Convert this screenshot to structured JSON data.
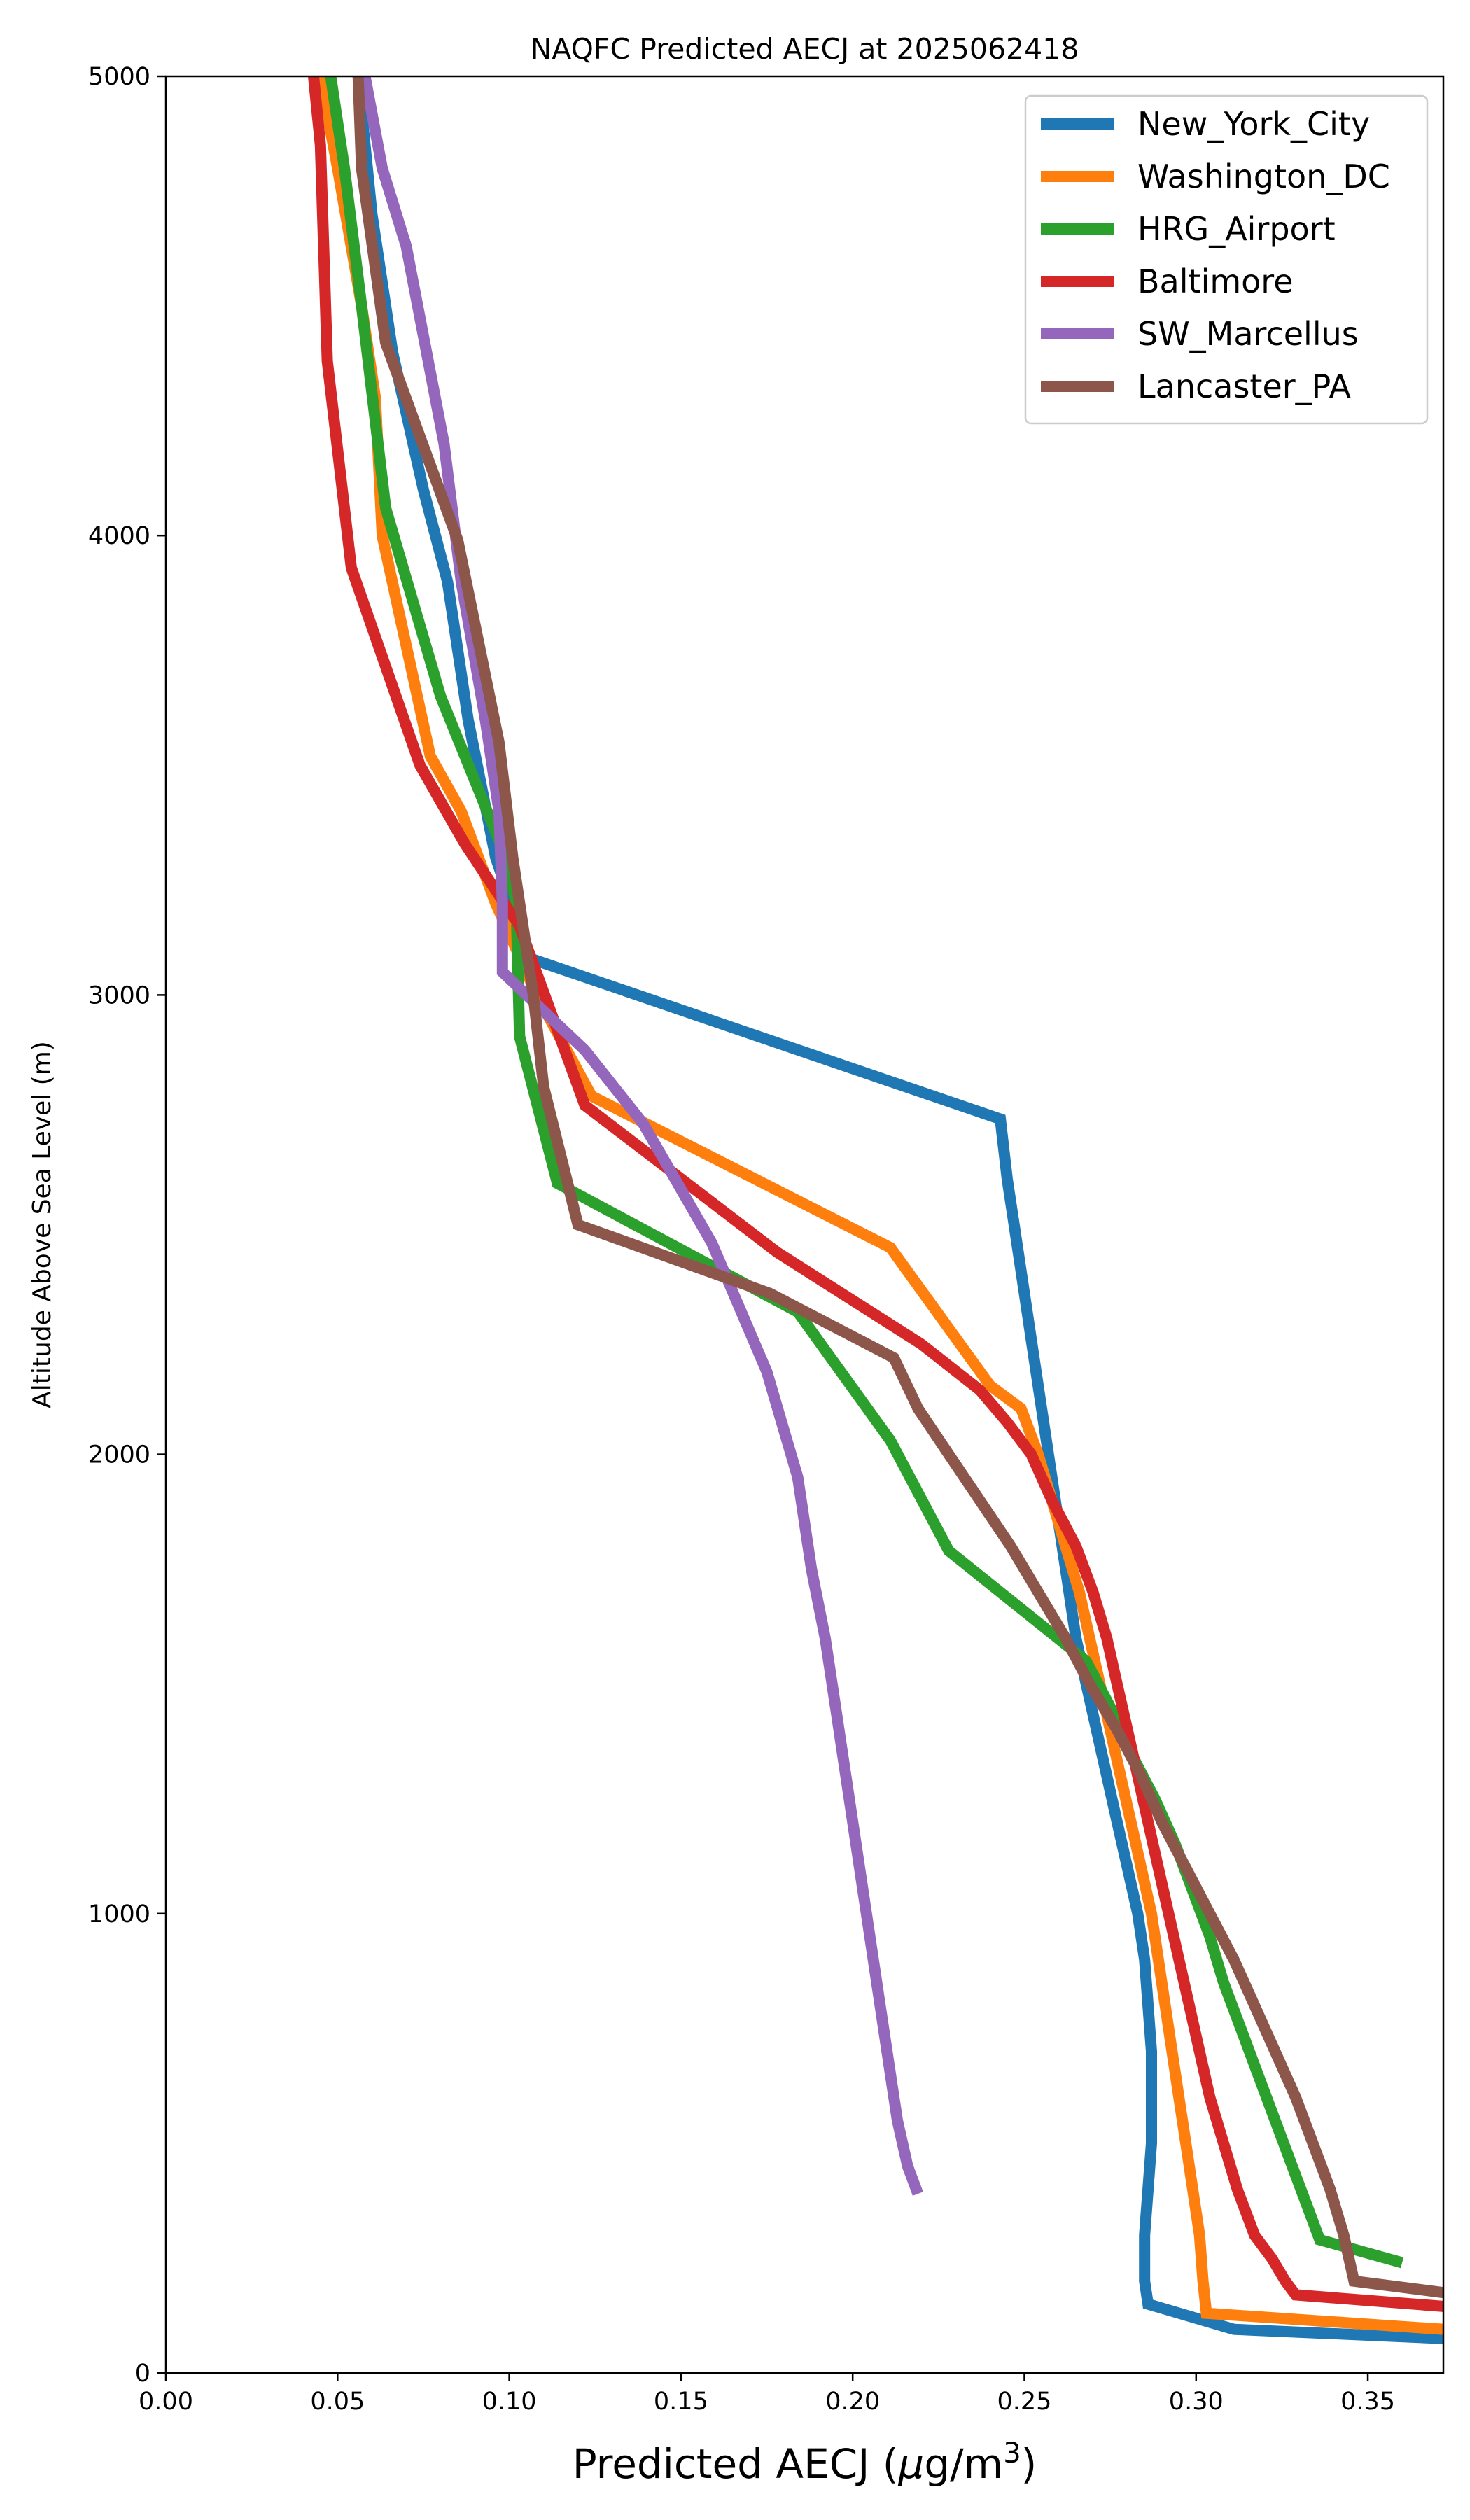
{
  "chart_data": {
    "type": "line",
    "title": "NAQFC Predicted AECJ at 2025062418",
    "xlabel_prefix": "Predicted AECJ (",
    "xlabel_mu": "μ",
    "xlabel_unit": "g/m",
    "xlabel_sup": "3",
    "xlabel_suffix": ")",
    "ylabel": "Altitude Above Sea Level (m)",
    "xlim": [
      0.0,
      0.372
    ],
    "ylim": [
      0,
      5000
    ],
    "xticks": [
      "0.00",
      "0.05",
      "0.10",
      "0.15",
      "0.20",
      "0.25",
      "0.30",
      "0.35"
    ],
    "xtick_values": [
      0.0,
      0.05,
      0.1,
      0.15,
      0.2,
      0.25,
      0.3,
      0.35
    ],
    "yticks": [
      "0",
      "1000",
      "2000",
      "3000",
      "4000",
      "5000"
    ],
    "ytick_values": [
      0,
      1000,
      2000,
      3000,
      4000,
      5000
    ],
    "grid": false,
    "legend_position": "top-right",
    "series": [
      {
        "name": "New_York_City",
        "color": "#1f77b4",
        "points": [
          [
            0.372,
            75
          ],
          [
            0.311,
            95
          ],
          [
            0.286,
            150
          ],
          [
            0.285,
            200
          ],
          [
            0.285,
            300
          ],
          [
            0.286,
            400
          ],
          [
            0.287,
            500
          ],
          [
            0.287,
            600
          ],
          [
            0.287,
            700
          ],
          [
            0.286,
            800
          ],
          [
            0.285,
            900
          ],
          [
            0.283,
            1000
          ],
          [
            0.28,
            1100
          ],
          [
            0.277,
            1200
          ],
          [
            0.274,
            1300
          ],
          [
            0.271,
            1400
          ],
          [
            0.268,
            1500
          ],
          [
            0.265,
            1600
          ],
          [
            0.263,
            1700
          ],
          [
            0.261,
            1800
          ],
          [
            0.259,
            1900
          ],
          [
            0.257,
            2000
          ],
          [
            0.255,
            2100
          ],
          [
            0.253,
            2200
          ],
          [
            0.251,
            2300
          ],
          [
            0.249,
            2400
          ],
          [
            0.247,
            2500
          ],
          [
            0.245,
            2600
          ],
          [
            0.243,
            2730
          ],
          [
            0.106,
            3080
          ],
          [
            0.096,
            3300
          ],
          [
            0.088,
            3600
          ],
          [
            0.082,
            3900
          ],
          [
            0.075,
            4100
          ],
          [
            0.066,
            4400
          ],
          [
            0.06,
            4700
          ],
          [
            0.056,
            5000
          ]
        ]
      },
      {
        "name": "Washington_DC",
        "color": "#ff7f0e",
        "points": [
          [
            0.372,
            95
          ],
          [
            0.303,
            130
          ],
          [
            0.302,
            200
          ],
          [
            0.301,
            300
          ],
          [
            0.299,
            400
          ],
          [
            0.297,
            500
          ],
          [
            0.295,
            600
          ],
          [
            0.293,
            700
          ],
          [
            0.291,
            800
          ],
          [
            0.289,
            900
          ],
          [
            0.287,
            1000
          ],
          [
            0.284,
            1100
          ],
          [
            0.281,
            1200
          ],
          [
            0.278,
            1300
          ],
          [
            0.275,
            1400
          ],
          [
            0.272,
            1500
          ],
          [
            0.269,
            1600
          ],
          [
            0.266,
            1700
          ],
          [
            0.262,
            1800
          ],
          [
            0.258,
            1900
          ],
          [
            0.254,
            2000
          ],
          [
            0.249,
            2100
          ],
          [
            0.24,
            2150
          ],
          [
            0.211,
            2450
          ],
          [
            0.124,
            2780
          ],
          [
            0.108,
            3000
          ],
          [
            0.096,
            3200
          ],
          [
            0.086,
            3400
          ],
          [
            0.077,
            3520
          ],
          [
            0.063,
            4000
          ],
          [
            0.061,
            4300
          ],
          [
            0.057,
            4500
          ],
          [
            0.05,
            4800
          ],
          [
            0.045,
            5000
          ]
        ]
      },
      {
        "name": "HRG_Airport",
        "color": "#2ca02c",
        "points": [
          [
            0.36,
            240
          ],
          [
            0.336,
            290
          ],
          [
            0.333,
            350
          ],
          [
            0.328,
            450
          ],
          [
            0.323,
            550
          ],
          [
            0.318,
            650
          ],
          [
            0.313,
            750
          ],
          [
            0.308,
            850
          ],
          [
            0.304,
            950
          ],
          [
            0.299,
            1050
          ],
          [
            0.294,
            1150
          ],
          [
            0.288,
            1250
          ],
          [
            0.281,
            1350
          ],
          [
            0.275,
            1450
          ],
          [
            0.268,
            1550
          ],
          [
            0.228,
            1790
          ],
          [
            0.211,
            2030
          ],
          [
            0.184,
            2310
          ],
          [
            0.114,
            2590
          ],
          [
            0.103,
            2910
          ],
          [
            0.102,
            3200
          ],
          [
            0.099,
            3300
          ],
          [
            0.08,
            3650
          ],
          [
            0.064,
            4060
          ],
          [
            0.057,
            4500
          ],
          [
            0.052,
            4800
          ],
          [
            0.048,
            5000
          ]
        ]
      },
      {
        "name": "Baltimore",
        "color": "#d62728",
        "points": [
          [
            0.372,
            145
          ],
          [
            0.329,
            170
          ],
          [
            0.326,
            200
          ],
          [
            0.322,
            250
          ],
          [
            0.317,
            300
          ],
          [
            0.312,
            400
          ],
          [
            0.308,
            500
          ],
          [
            0.304,
            600
          ],
          [
            0.301,
            700
          ],
          [
            0.298,
            800
          ],
          [
            0.295,
            900
          ],
          [
            0.292,
            1000
          ],
          [
            0.289,
            1100
          ],
          [
            0.286,
            1200
          ],
          [
            0.283,
            1300
          ],
          [
            0.28,
            1400
          ],
          [
            0.277,
            1500
          ],
          [
            0.274,
            1600
          ],
          [
            0.27,
            1700
          ],
          [
            0.265,
            1800
          ],
          [
            0.258,
            1900
          ],
          [
            0.252,
            2000
          ],
          [
            0.245,
            2070
          ],
          [
            0.237,
            2140
          ],
          [
            0.22,
            2240
          ],
          [
            0.178,
            2440
          ],
          [
            0.122,
            2760
          ],
          [
            0.103,
            3150
          ],
          [
            0.087,
            3330
          ],
          [
            0.074,
            3500
          ],
          [
            0.054,
            3930
          ],
          [
            0.047,
            4380
          ],
          [
            0.045,
            4850
          ],
          [
            0.043,
            5000
          ]
        ]
      },
      {
        "name": "SW_Marcellus",
        "color": "#9467bd",
        "points": [
          [
            0.219,
            390
          ],
          [
            0.216,
            450
          ],
          [
            0.213,
            550
          ],
          [
            0.21,
            700
          ],
          [
            0.207,
            850
          ],
          [
            0.204,
            1000
          ],
          [
            0.201,
            1150
          ],
          [
            0.198,
            1300
          ],
          [
            0.195,
            1450
          ],
          [
            0.192,
            1600
          ],
          [
            0.188,
            1750
          ],
          [
            0.184,
            1950
          ],
          [
            0.175,
            2180
          ],
          [
            0.159,
            2460
          ],
          [
            0.139,
            2720
          ],
          [
            0.122,
            2880
          ],
          [
            0.098,
            3050
          ],
          [
            0.098,
            3200
          ],
          [
            0.097,
            3400
          ],
          [
            0.093,
            3600
          ],
          [
            0.086,
            3900
          ],
          [
            0.081,
            4200
          ],
          [
            0.07,
            4630
          ],
          [
            0.063,
            4800
          ],
          [
            0.058,
            5000
          ]
        ]
      },
      {
        "name": "Lancaster_PA",
        "color": "#8c564b",
        "points": [
          [
            0.372,
            175
          ],
          [
            0.346,
            200
          ],
          [
            0.343,
            300
          ],
          [
            0.339,
            400
          ],
          [
            0.334,
            500
          ],
          [
            0.329,
            600
          ],
          [
            0.323,
            700
          ],
          [
            0.317,
            800
          ],
          [
            0.311,
            900
          ],
          [
            0.304,
            1000
          ],
          [
            0.297,
            1100
          ],
          [
            0.29,
            1200
          ],
          [
            0.284,
            1300
          ],
          [
            0.277,
            1400
          ],
          [
            0.269,
            1500
          ],
          [
            0.262,
            1600
          ],
          [
            0.254,
            1700
          ],
          [
            0.246,
            1800
          ],
          [
            0.237,
            1900
          ],
          [
            0.228,
            2000
          ],
          [
            0.219,
            2100
          ],
          [
            0.212,
            2210
          ],
          [
            0.176,
            2350
          ],
          [
            0.12,
            2500
          ],
          [
            0.11,
            2800
          ],
          [
            0.107,
            3000
          ],
          [
            0.101,
            3300
          ],
          [
            0.097,
            3550
          ],
          [
            0.085,
            3990
          ],
          [
            0.064,
            4420
          ],
          [
            0.057,
            4800
          ],
          [
            0.056,
            5000
          ]
        ]
      }
    ]
  }
}
